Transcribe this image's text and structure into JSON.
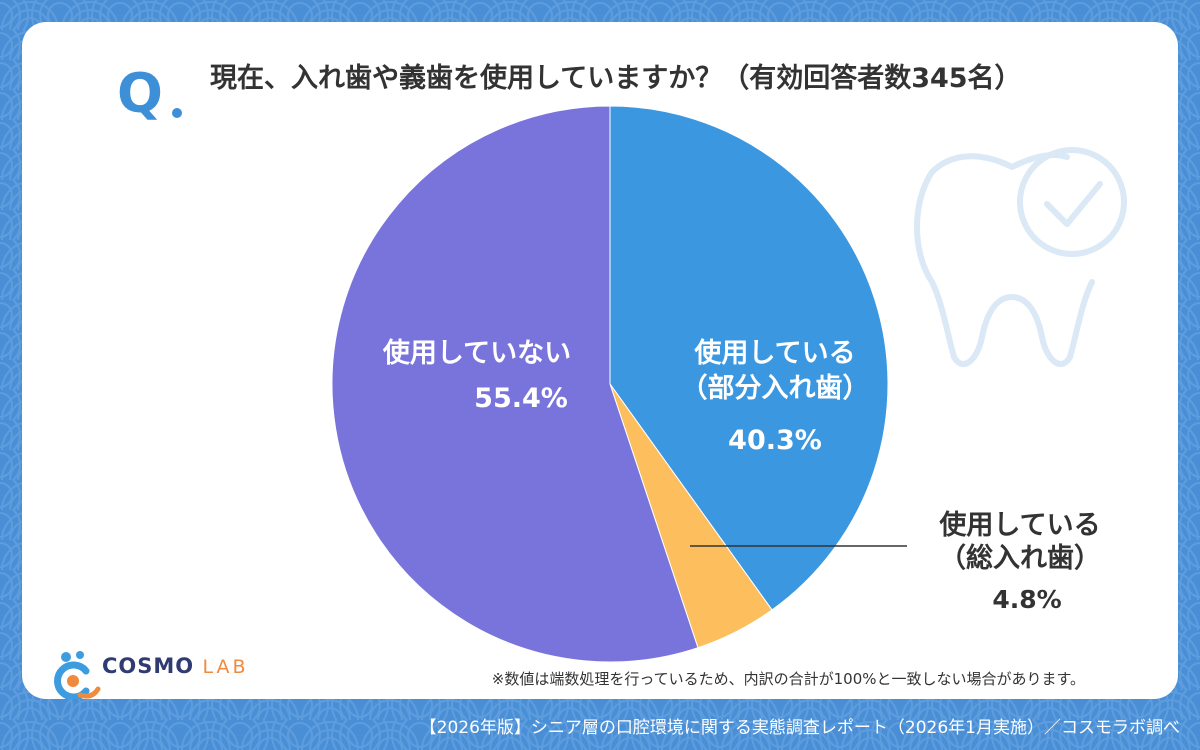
{
  "question": {
    "prefix": "Q",
    "text": "現在、入れ歯や義歯を使用していますか？（有効回答者数345名）"
  },
  "chart_data": {
    "type": "pie",
    "slices": [
      {
        "label_line1": "使用している",
        "label_line2": "（部分入れ歯）",
        "value": 40.3,
        "value_text": "40.3%",
        "color": "#3b97df"
      },
      {
        "label_line1": "使用している",
        "label_line2": "（総入れ歯）",
        "value": 4.8,
        "value_text": "4.8%",
        "color": "#fdbe5e"
      },
      {
        "label_line1": "使用していない",
        "label_line2": "",
        "value": 55.4,
        "value_text": "55.4%",
        "color": "#7974dc"
      }
    ]
  },
  "note": "※数値は端数処理を行っているため、内訳の合計が100%と一致しない場合があります。",
  "logo": {
    "main": "COSMO",
    "sub": "LAB"
  },
  "footer": "【2026年版】シニア層の口腔環境に関する実態調査レポート（2026年1月実施）／コスモラボ調べ",
  "colors": {
    "background": "#4a8fd6",
    "card": "#ffffff",
    "accent": "#3d8fd8"
  },
  "icons": [
    "tooth-check-icon",
    "cosmo-lab-logo-icon"
  ]
}
